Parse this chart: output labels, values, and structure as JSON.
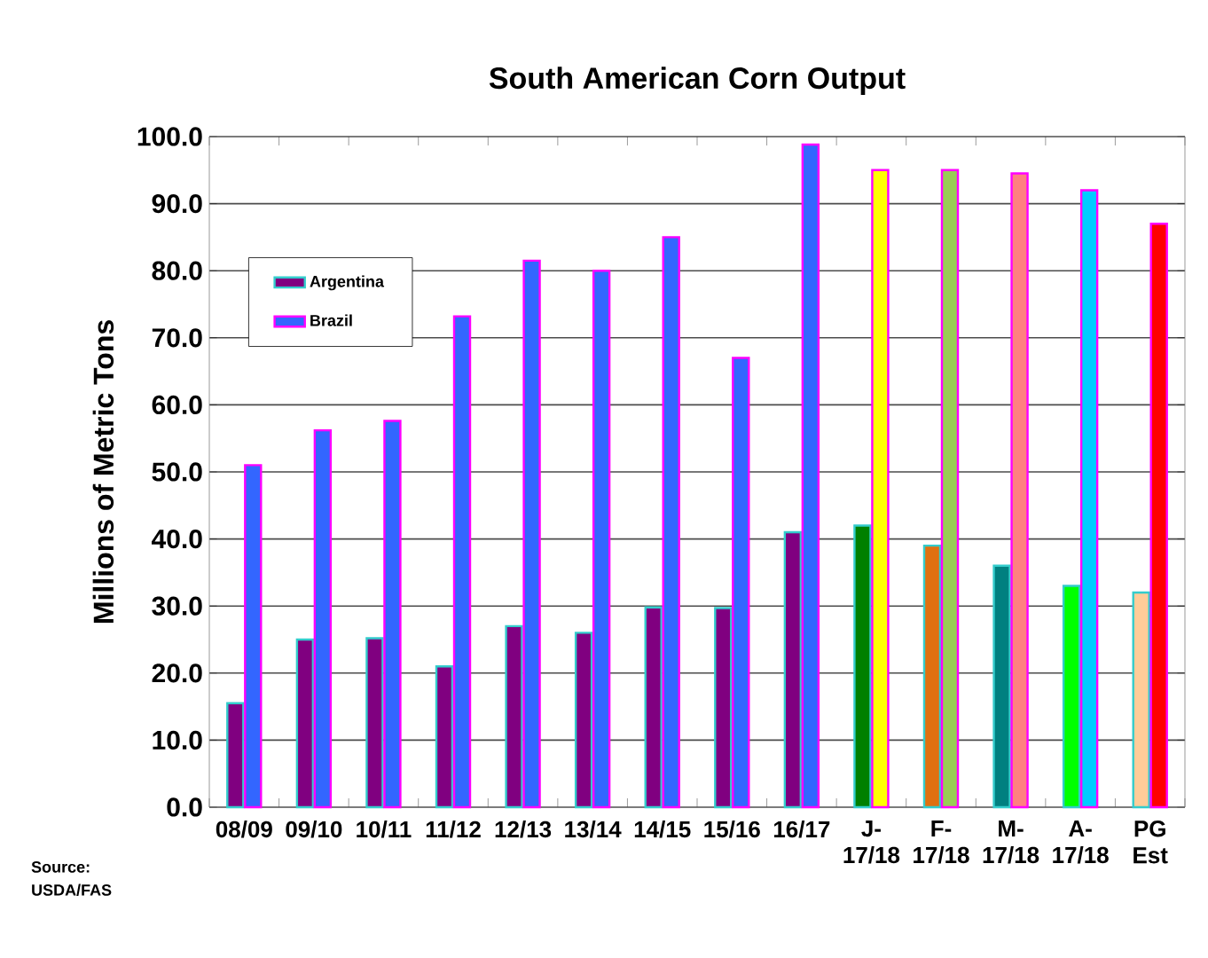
{
  "chart_data": {
    "type": "bar",
    "title": "South American Corn Output",
    "ylabel": "Millions of Metric Tons",
    "categories": [
      "08/09",
      "09/10",
      "10/11",
      "11/12",
      "12/13",
      "13/14",
      "14/15",
      "15/16",
      "16/17",
      "J- 17/18",
      "F- 17/18",
      "M- 17/18",
      "A- 17/18",
      "PG Est"
    ],
    "series": [
      {
        "name": "Argentina",
        "colors": [
          "#800080",
          "#800080",
          "#800080",
          "#800080",
          "#800080",
          "#800080",
          "#800080",
          "#800080",
          "#800080",
          "#008000",
          "#e07010",
          "#008080",
          "#00ff00",
          "#ffcc99"
        ],
        "values": [
          15.5,
          25.0,
          25.2,
          21.0,
          27.0,
          26.0,
          29.8,
          29.7,
          41.0,
          42.0,
          39.0,
          36.0,
          33.0,
          32.0
        ]
      },
      {
        "name": "Brazil",
        "colors": [
          "#3366ff",
          "#3366ff",
          "#3366ff",
          "#3366ff",
          "#3366ff",
          "#3366ff",
          "#3366ff",
          "#3366ff",
          "#3366ff",
          "#ffff00",
          "#99cc55",
          "#ff8080",
          "#00ccff",
          "#ff0000"
        ],
        "values": [
          51.0,
          56.2,
          57.6,
          73.2,
          81.5,
          80.0,
          85.0,
          67.0,
          98.8,
          95.0,
          95.0,
          94.5,
          92.0,
          87.0
        ]
      }
    ],
    "ylim": [
      0,
      100
    ],
    "yticks": [
      {
        "value": 0,
        "label": "0.0"
      },
      {
        "value": 10,
        "label": "10.0"
      },
      {
        "value": 20,
        "label": "20.0"
      },
      {
        "value": 30,
        "label": "30.0"
      },
      {
        "value": 40,
        "label": "40.0"
      },
      {
        "value": 50,
        "label": "50.0"
      },
      {
        "value": 60,
        "label": "60.0"
      },
      {
        "value": 70,
        "label": "70.0"
      },
      {
        "value": 80,
        "label": "80.0"
      },
      {
        "value": 90,
        "label": "90.0"
      },
      {
        "value": 100,
        "label": "100.0"
      }
    ],
    "grid": "y",
    "legend": "top left",
    "annotations": [
      "Source: USDA/FAS"
    ]
  }
}
